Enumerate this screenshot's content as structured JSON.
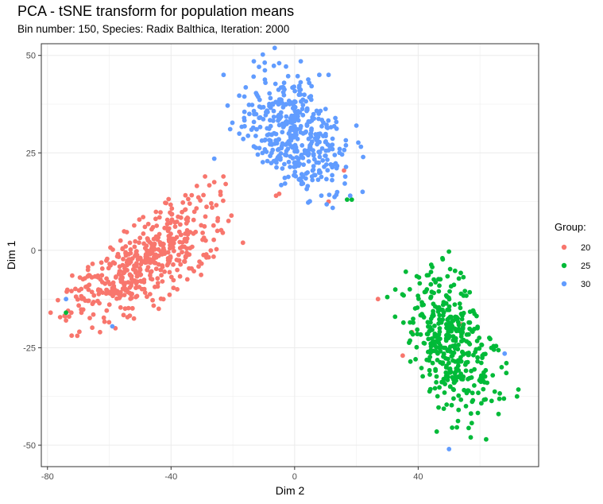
{
  "chart_data": {
    "type": "scatter",
    "title": "PCA - tSNE transform for population means",
    "subtitle": "Bin number: 150, Species: Radix Balthica, Iteration: 2000",
    "xlabel": "Dim 2",
    "ylabel": "Dim 1",
    "xlim": [
      -82,
      79
    ],
    "ylim": [
      -55.5,
      53
    ],
    "x_ticks": [
      -80,
      -40,
      0,
      40
    ],
    "y_ticks": [
      -50,
      -25,
      0,
      25,
      50
    ],
    "grid": true,
    "legend": {
      "title": "Group:",
      "position": "right",
      "entries": [
        {
          "label": "20",
          "color": "#F8766D"
        },
        {
          "label": "25",
          "color": "#00BA38"
        },
        {
          "label": "30",
          "color": "#619CFF"
        }
      ]
    },
    "series": [
      {
        "name": "20",
        "color": "#F8766D",
        "cluster": {
          "n": 470,
          "center": [
            -48,
            -3
          ],
          "angle_deg": 27,
          "sd_major": 14,
          "sd_minor": 5.3,
          "clip_major": 2.3,
          "clip_minor": 2.1
        },
        "outliers": [
          [
            -5,
            14.5
          ],
          [
            11,
            12.5
          ],
          [
            16,
            20.5
          ],
          [
            -6,
            14
          ],
          [
            -26,
            17.5
          ],
          [
            -74,
            -18
          ],
          [
            -63,
            -21
          ],
          [
            -72,
            -6.5
          ],
          [
            -69,
            -16
          ],
          [
            -58,
            -20
          ],
          [
            -52,
            -17.5
          ],
          [
            -44,
            -15
          ],
          [
            -38,
            -10
          ],
          [
            -24,
            15
          ],
          [
            -25,
            5
          ],
          [
            -79,
            -16
          ],
          [
            -73,
            -17
          ],
          [
            27,
            -12.5
          ],
          [
            35,
            -27
          ],
          [
            54,
            -19
          ],
          [
            38,
            -21
          ]
        ]
      },
      {
        "name": "25",
        "color": "#00BA38",
        "cluster": {
          "n": 400,
          "center": [
            50,
            -24
          ],
          "angle_deg": -58,
          "sd_major": 10,
          "sd_minor": 6.6,
          "clip_major": 2.2,
          "clip_minor": 2.0
        },
        "outliers": [
          [
            -74,
            -16
          ],
          [
            17,
            13
          ],
          [
            18.5,
            13
          ],
          [
            72,
            -37.5
          ],
          [
            46,
            -46.5
          ],
          [
            36,
            -5.5
          ],
          [
            30,
            -12
          ],
          [
            62,
            -48.5
          ],
          [
            57,
            -48
          ],
          [
            51,
            -45.5
          ],
          [
            66,
            -42
          ],
          [
            47,
            -18
          ]
        ]
      },
      {
        "name": "30",
        "color": "#619CFF",
        "cluster": {
          "n": 420,
          "center": [
            0,
            30
          ],
          "angle_deg": -38,
          "sd_major": 9.8,
          "sd_minor": 6.6,
          "clip_major": 2.3,
          "clip_minor": 2.1
        },
        "outliers": [
          [
            -74,
            -12.5
          ],
          [
            -59,
            -19.5
          ],
          [
            -26,
            23.5
          ],
          [
            50,
            -51
          ],
          [
            68,
            -26.5
          ],
          [
            -23,
            45
          ],
          [
            -5,
            48
          ],
          [
            2,
            48.5
          ],
          [
            8,
            45
          ],
          [
            11,
            45
          ],
          [
            20,
            32
          ],
          [
            22,
            15
          ],
          [
            18,
            14
          ]
        ]
      }
    ]
  }
}
